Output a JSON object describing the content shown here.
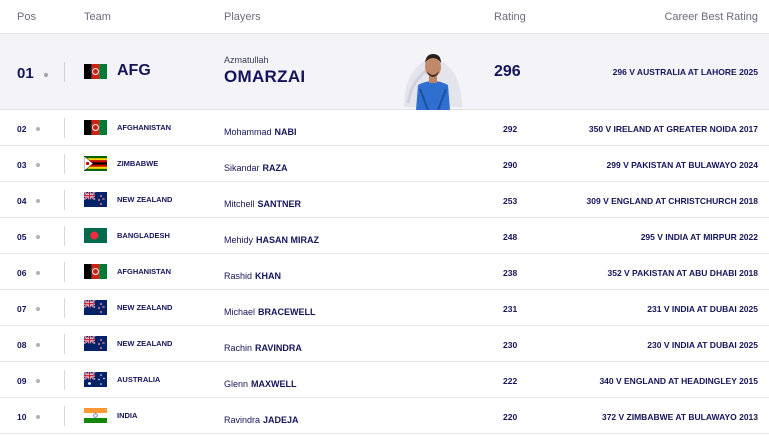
{
  "header": {
    "pos": "Pos",
    "team": "Team",
    "players": "Players",
    "rating": "Rating",
    "career_best": "Career Best Rating"
  },
  "leader": {
    "pos": "01",
    "team": "AFG",
    "flag": "afghanistan-flag",
    "first_name": "Azmatullah",
    "last_name": "OMARZAI",
    "rating": "296",
    "career_best": "296 V AUSTRALIA AT LAHORE 2025"
  },
  "rows": [
    {
      "pos": "02",
      "team": "AFGHANISTAN",
      "flag": "afghanistan",
      "first": "Mohammad",
      "last": "NABI",
      "rating": "292",
      "career": "350 V IRELAND AT GREATER NOIDA 2017"
    },
    {
      "pos": "03",
      "team": "ZIMBABWE",
      "flag": "zimbabwe",
      "first": "Sikandar",
      "last": "RAZA",
      "rating": "290",
      "career": "299 V PAKISTAN AT BULAWAYO 2024"
    },
    {
      "pos": "04",
      "team": "NEW ZEALAND",
      "flag": "newzealand",
      "first": "Mitchell",
      "last": "SANTNER",
      "rating": "253",
      "career": "309 V ENGLAND AT CHRISTCHURCH 2018"
    },
    {
      "pos": "05",
      "team": "BANGLADESH",
      "flag": "bangladesh",
      "first": "Mehidy",
      "last": "HASAN MIRAZ",
      "rating": "248",
      "career": "295 V INDIA AT MIRPUR 2022"
    },
    {
      "pos": "06",
      "team": "AFGHANISTAN",
      "flag": "afghanistan",
      "first": "Rashid",
      "last": "KHAN",
      "rating": "238",
      "career": "352 V PAKISTAN AT ABU DHABI 2018"
    },
    {
      "pos": "07",
      "team": "NEW ZEALAND",
      "flag": "newzealand",
      "first": "Michael",
      "last": "BRACEWELL",
      "rating": "231",
      "career": "231 V INDIA AT DUBAI 2025"
    },
    {
      "pos": "08",
      "team": "NEW ZEALAND",
      "flag": "newzealand",
      "first": "Rachin",
      "last": "RAVINDRA",
      "rating": "230",
      "career": "230 V INDIA AT DUBAI 2025"
    },
    {
      "pos": "09",
      "team": "AUSTRALIA",
      "flag": "australia",
      "first": "Glenn",
      "last": "MAXWELL",
      "rating": "222",
      "career": "340 V ENGLAND AT HEADINGLEY 2015"
    },
    {
      "pos": "10",
      "team": "INDIA",
      "flag": "india",
      "first": "Ravindra",
      "last": "JADEJA",
      "rating": "220",
      "career": "372 V ZIMBABWE AT BULAWAYO 2013"
    }
  ],
  "colors": {
    "navy": "#14145a",
    "header_text": "#6b6b80",
    "leader_bg": "#f4f4f8",
    "divider": "#e6e6ee"
  }
}
